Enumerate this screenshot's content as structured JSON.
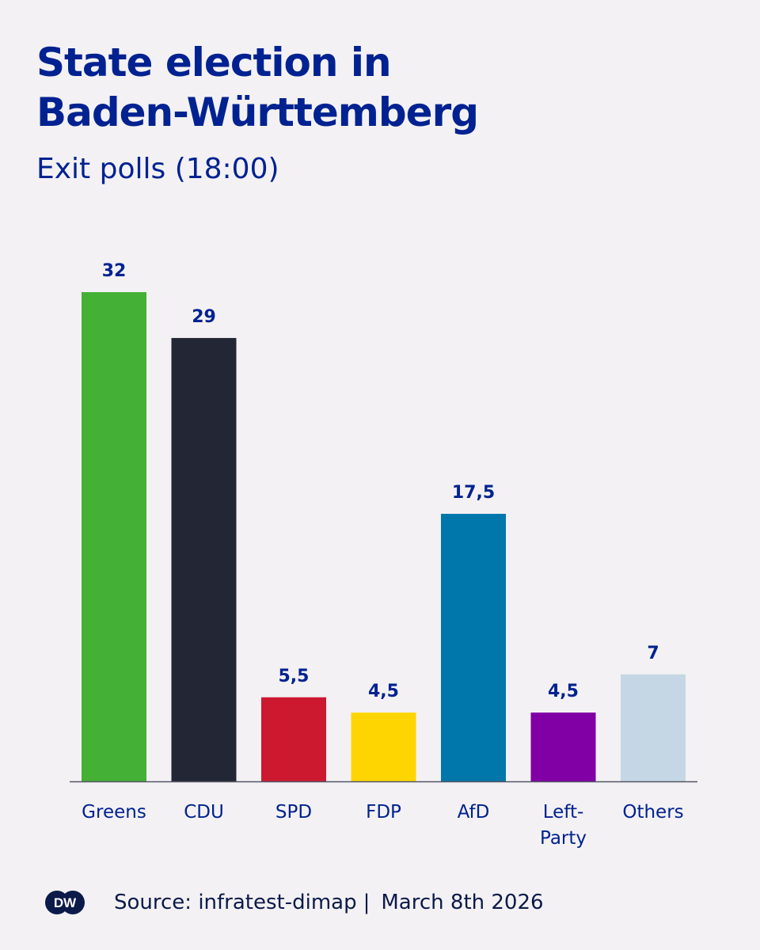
{
  "header": {
    "title_line1": "State election in",
    "title_line2": "Baden-Württemberg",
    "subtitle": "Exit polls (18:00)"
  },
  "chart_data": {
    "type": "bar",
    "categories": [
      "Greens",
      "CDU",
      "SPD",
      "FDP",
      "AfD",
      "Left-Party",
      "Others"
    ],
    "category_labels": [
      [
        "Greens"
      ],
      [
        "CDU"
      ],
      [
        "SPD"
      ],
      [
        "FDP"
      ],
      [
        "AfD"
      ],
      [
        "Left-",
        "Party"
      ],
      [
        "Others"
      ]
    ],
    "values": [
      32,
      29,
      5.5,
      4.5,
      17.5,
      4.5,
      7
    ],
    "data_labels": [
      "32",
      "29",
      "5,5",
      "4,5",
      "17,5",
      "4,5",
      "7"
    ],
    "colors": [
      "#44b035",
      "#232735",
      "#cc1930",
      "#ffd500",
      "#0077aa",
      "#8000a5",
      "#c5d7e5"
    ],
    "ylim": [
      0,
      32
    ],
    "grid": false,
    "legend": "none"
  },
  "footer": {
    "logo_text": "DW",
    "source": "Source: infratest-dimap",
    "separator": "|",
    "date": "March 8th 2026"
  },
  "colors": {
    "title": "#002291",
    "background": "#f3f1f3",
    "axis": "#555566"
  }
}
